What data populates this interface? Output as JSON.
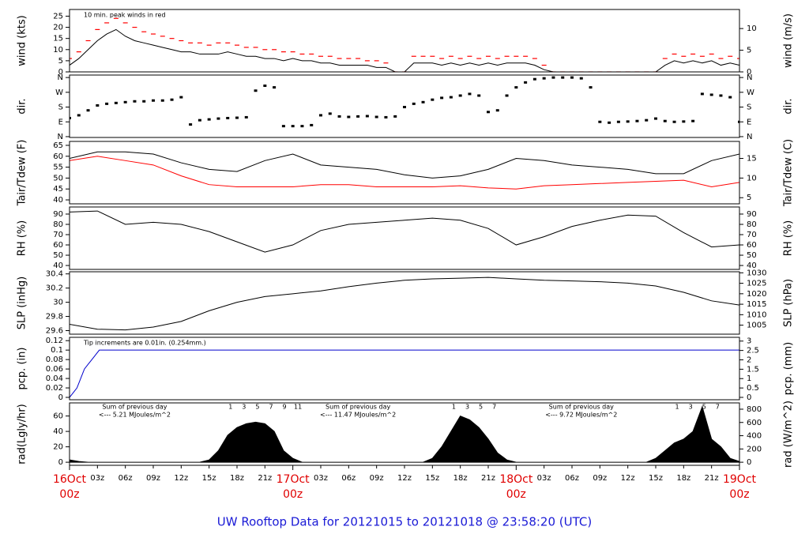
{
  "chart_data": [
    {
      "type": "line",
      "ylabel": "wind (kts)",
      "y2label": "wind (m/s)",
      "annotation": "10 min. peak winds in red",
      "ylim": [
        0,
        28
      ],
      "yticks": [
        0,
        5,
        10,
        15,
        20,
        25
      ],
      "y2lim": [
        0,
        14.4
      ],
      "y2ticks": [
        0,
        5,
        10
      ],
      "xlim": [
        0,
        72
      ],
      "x": [
        0,
        1,
        2,
        3,
        4,
        5,
        6,
        7,
        8,
        9,
        10,
        11,
        12,
        13,
        14,
        15,
        16,
        17,
        18,
        19,
        20,
        21,
        22,
        23,
        24,
        25,
        26,
        27,
        28,
        29,
        30,
        31,
        32,
        33,
        34,
        35,
        36,
        37,
        38,
        39,
        40,
        41,
        42,
        43,
        44,
        45,
        46,
        47,
        48,
        49,
        50,
        51,
        52,
        53,
        54,
        55,
        56,
        57,
        58,
        59,
        60,
        61,
        62,
        63,
        64,
        65,
        66,
        67,
        68,
        69,
        70,
        71,
        72
      ],
      "series": [
        {
          "color": "#000000",
          "style": "line",
          "values": [
            3,
            6,
            10,
            14,
            17,
            19,
            16,
            14,
            13,
            12,
            11,
            10,
            9,
            9,
            8,
            8,
            8,
            9,
            8,
            7,
            7,
            6,
            6,
            5,
            6,
            5,
            5,
            4,
            4,
            3,
            3,
            3,
            3,
            2,
            2,
            0,
            0,
            4,
            4,
            4,
            3,
            4,
            3,
            4,
            3,
            4,
            3,
            4,
            4,
            4,
            3,
            1,
            0,
            0,
            0,
            0,
            0,
            0,
            0,
            0,
            0,
            0,
            0,
            0,
            3,
            5,
            4,
            5,
            4,
            5,
            3,
            4,
            3
          ]
        },
        {
          "color": "#ff0000",
          "style": "ticks",
          "values": [
            6,
            9,
            14,
            19,
            22,
            24,
            22,
            20,
            18,
            17,
            16,
            15,
            14,
            13,
            13,
            12,
            13,
            13,
            12,
            11,
            11,
            10,
            10,
            9,
            9,
            8,
            8,
            7,
            7,
            6,
            6,
            6,
            5,
            5,
            4,
            0,
            0,
            7,
            7,
            7,
            6,
            7,
            6,
            7,
            6,
            7,
            6,
            7,
            7,
            7,
            6,
            3,
            0,
            0,
            0,
            0,
            0,
            0,
            0,
            0,
            0,
            0,
            0,
            0,
            6,
            8,
            7,
            8,
            7,
            8,
            6,
            7,
            6
          ]
        }
      ]
    },
    {
      "type": "line",
      "ylabel": "dir.",
      "y2label": "dir.",
      "ylim": [
        -5,
        375
      ],
      "yticks": [
        {
          "value": 0,
          "label": "N"
        },
        {
          "value": 90,
          "label": "E"
        },
        {
          "value": 180,
          "label": "S"
        },
        {
          "value": 270,
          "label": "W"
        },
        {
          "value": 360,
          "label": "N"
        }
      ],
      "y2lim": [
        -5,
        375
      ],
      "y2ticks": [
        {
          "value": 0,
          "label": "N"
        },
        {
          "value": 90,
          "label": "E"
        },
        {
          "value": 180,
          "label": "S"
        },
        {
          "value": 270,
          "label": "W"
        },
        {
          "value": 360,
          "label": "N"
        }
      ],
      "xlim": [
        0,
        72
      ],
      "x": [
        0,
        1,
        2,
        3,
        4,
        5,
        6,
        7,
        8,
        9,
        10,
        11,
        12,
        13,
        14,
        15,
        16,
        17,
        18,
        19,
        20,
        21,
        22,
        23,
        24,
        25,
        26,
        27,
        28,
        29,
        30,
        31,
        32,
        33,
        34,
        35,
        36,
        37,
        38,
        39,
        40,
        41,
        42,
        43,
        44,
        45,
        46,
        47,
        48,
        49,
        50,
        51,
        52,
        53,
        54,
        55,
        56,
        57,
        58,
        59,
        60,
        61,
        62,
        63,
        64,
        65,
        66,
        67,
        68,
        69,
        70,
        71,
        72
      ],
      "series": [
        {
          "color": "#000000",
          "style": "points",
          "values": [
            113,
            130,
            160,
            190,
            200,
            205,
            210,
            215,
            215,
            220,
            220,
            225,
            240,
            74,
            100,
            105,
            110,
            113,
            115,
            118,
            280,
            310,
            300,
            64,
            64,
            64,
            70,
            130,
            140,
            123,
            120,
            123,
            125,
            120,
            118,
            123,
            180,
            200,
            210,
            225,
            236,
            240,
            250,
            260,
            250,
            150,
            160,
            250,
            300,
            330,
            350,
            355,
            360,
            360,
            360,
            355,
            300,
            90,
            85,
            90,
            92,
            95,
            100,
            110,
            95,
            90,
            92,
            95,
            260,
            255,
            250,
            240,
            90
          ]
        }
      ]
    },
    {
      "type": "line",
      "ylabel": "Tair/Tdew (F)",
      "y2label": "Tair/Tdew (C)",
      "ylim": [
        38.2,
        66.8
      ],
      "yticks": [
        40,
        45,
        50,
        55,
        60,
        65
      ],
      "y2lim": [
        3.44,
        19.33
      ],
      "y2ticks": [
        5,
        10,
        15
      ],
      "xlim": [
        0,
        72
      ],
      "x": [
        0,
        3,
        6,
        9,
        12,
        15,
        18,
        21,
        24,
        27,
        30,
        33,
        36,
        39,
        42,
        45,
        48,
        51,
        54,
        57,
        60,
        63,
        66,
        69,
        72
      ],
      "series": [
        {
          "color": "#000000",
          "style": "line",
          "values": [
            59,
            62,
            62,
            61,
            57,
            54,
            53,
            58,
            61,
            56,
            55,
            54,
            51.5,
            50,
            51,
            54,
            59,
            58,
            56,
            55,
            54,
            52,
            52,
            58,
            61
          ]
        },
        {
          "color": "#ff0000",
          "style": "line",
          "values": [
            58,
            60,
            58,
            56,
            51,
            47,
            46,
            46,
            46,
            47,
            47,
            46,
            46,
            46,
            46.5,
            45.5,
            45,
            46.5,
            47,
            47.5,
            48,
            48.5,
            49,
            46,
            48
          ]
        }
      ]
    },
    {
      "type": "line",
      "ylabel": "RH (%)",
      "y2label": "RH (%)",
      "ylim": [
        36.2,
        96.9
      ],
      "yticks": [
        40,
        50,
        60,
        70,
        80,
        90
      ],
      "y2lim": [
        36.2,
        96.9
      ],
      "y2ticks": [
        40,
        50,
        60,
        70,
        80,
        90
      ],
      "xlim": [
        0,
        72
      ],
      "x": [
        0,
        3,
        6,
        9,
        12,
        15,
        18,
        21,
        24,
        27,
        30,
        33,
        36,
        39,
        42,
        45,
        48,
        51,
        54,
        57,
        60,
        63,
        66,
        69,
        72
      ],
      "series": [
        {
          "color": "#000000",
          "style": "line",
          "values": [
            92,
            93,
            80,
            82,
            80,
            73,
            63,
            53,
            60,
            74,
            80,
            82,
            84,
            86,
            84,
            76,
            60,
            68,
            78,
            84,
            89,
            88,
            72,
            58,
            60
          ]
        }
      ]
    },
    {
      "type": "line",
      "ylabel": "SLP (inHg)",
      "y2label": "SLP (hPa)",
      "ylim": [
        29.55,
        30.43
      ],
      "yticks": [
        29.6,
        29.8,
        30.0,
        30.2,
        30.4
      ],
      "y2lim": [
        1000.7,
        1030.5
      ],
      "y2ticks": [
        1005,
        1010,
        1015,
        1020,
        1025,
        1030
      ],
      "xlim": [
        0,
        72
      ],
      "x": [
        0,
        3,
        6,
        9,
        12,
        15,
        18,
        21,
        24,
        27,
        30,
        33,
        36,
        39,
        42,
        45,
        48,
        51,
        54,
        57,
        60,
        63,
        66,
        69,
        72
      ],
      "series": [
        {
          "color": "#000000",
          "style": "line",
          "values": [
            29.69,
            29.62,
            29.61,
            29.65,
            29.73,
            29.88,
            30.0,
            30.08,
            30.12,
            30.16,
            30.22,
            30.27,
            30.31,
            30.33,
            30.34,
            30.35,
            30.33,
            30.31,
            30.3,
            30.29,
            30.27,
            30.23,
            30.14,
            30.02,
            29.96
          ]
        }
      ]
    },
    {
      "type": "line",
      "ylabel": "pcp. (in)",
      "y2label": "pcp. (mm)",
      "annotation": "Tip increments are 0.01in. (0.254mm.)",
      "ylim": [
        -0.005,
        0.127
      ],
      "yticks": [
        0,
        0.02,
        0.04,
        0.06,
        0.08,
        0.1,
        0.12
      ],
      "y2lim": [
        -0.127,
        3.2
      ],
      "y2ticks": [
        0,
        0.5,
        1,
        1.5,
        2,
        2.5,
        3
      ],
      "xlim": [
        0,
        72
      ],
      "x": [
        0,
        0.4,
        0.8,
        1.2,
        1.6,
        2.0,
        2.4,
        2.8,
        3.2,
        72
      ],
      "series": [
        {
          "color": "#0000cc",
          "style": "line",
          "values": [
            0,
            0.01,
            0.02,
            0.04,
            0.06,
            0.07,
            0.08,
            0.09,
            0.1,
            0.1
          ]
        }
      ]
    },
    {
      "type": "line",
      "ylabel": "rad(Lgly/hr)",
      "y2label": "rad (W/m^2)",
      "ylim": [
        -4,
        77
      ],
      "yticks": [
        0,
        20,
        40,
        60
      ],
      "y2lim": [
        -46.5,
        895
      ],
      "y2ticks": [
        0,
        200,
        400,
        600,
        800
      ],
      "xlim": [
        0,
        72
      ],
      "x": [
        0,
        1,
        2,
        3,
        4,
        5,
        6,
        7,
        8,
        9,
        10,
        11,
        12,
        13,
        14,
        15,
        16,
        17,
        18,
        19,
        20,
        21,
        22,
        23,
        24,
        25,
        26,
        27,
        28,
        29,
        30,
        31,
        32,
        33,
        34,
        35,
        36,
        37,
        38,
        39,
        40,
        41,
        42,
        43,
        44,
        45,
        46,
        47,
        48,
        49,
        50,
        51,
        52,
        53,
        54,
        55,
        56,
        57,
        58,
        59,
        60,
        61,
        62,
        63,
        64,
        65,
        66,
        67,
        68,
        69,
        70,
        71,
        72
      ],
      "series": [
        {
          "color": "#000000",
          "style": "area",
          "values": [
            3,
            1,
            0,
            0,
            0,
            0,
            0,
            0,
            0,
            0,
            0,
            0,
            0,
            0,
            0,
            3,
            15,
            35,
            45,
            50,
            52,
            50,
            40,
            15,
            5,
            0,
            0,
            0,
            0,
            0,
            0,
            0,
            0,
            0,
            0,
            0,
            0,
            0,
            0,
            5,
            20,
            40,
            60,
            55,
            45,
            30,
            12,
            3,
            0,
            0,
            0,
            0,
            0,
            0,
            0,
            0,
            0,
            0,
            0,
            0,
            0,
            0,
            0,
            5,
            15,
            25,
            30,
            40,
            72,
            30,
            20,
            5,
            1
          ]
        }
      ],
      "daily_sums": [
        {
          "title": "Sum of previous day",
          "text": "<--- 5.21 MJoules/m^2"
        },
        {
          "title": "Sum of previous day",
          "text": "<--- 11.47 MJoules/m^2"
        },
        {
          "title": "Sum of previous day",
          "text": "<--- 9.72 MJoules/m^2"
        }
      ],
      "hour_marks": [
        [
          "1",
          "3",
          "5",
          "7",
          "9",
          "11"
        ],
        [
          "1",
          "3",
          "5",
          "7"
        ],
        [
          "1",
          "3",
          "5",
          "7"
        ]
      ]
    }
  ],
  "x_axis": {
    "xlim": [
      0,
      72
    ],
    "xticks": [
      {
        "value": 3,
        "label": "03z"
      },
      {
        "value": 6,
        "label": "06z"
      },
      {
        "value": 9,
        "label": "09z"
      },
      {
        "value": 12,
        "label": "12z"
      },
      {
        "value": 15,
        "label": "15z"
      },
      {
        "value": 18,
        "label": "18z"
      },
      {
        "value": 21,
        "label": "21z"
      },
      {
        "value": 27,
        "label": "03z"
      },
      {
        "value": 30,
        "label": "06z"
      },
      {
        "value": 33,
        "label": "09z"
      },
      {
        "value": 36,
        "label": "12z"
      },
      {
        "value": 39,
        "label": "15z"
      },
      {
        "value": 42,
        "label": "18z"
      },
      {
        "value": 45,
        "label": "21z"
      },
      {
        "value": 51,
        "label": "03z"
      },
      {
        "value": 54,
        "label": "06z"
      },
      {
        "value": 57,
        "label": "09z"
      },
      {
        "value": 60,
        "label": "12z"
      },
      {
        "value": 63,
        "label": "15z"
      },
      {
        "value": 66,
        "label": "18z"
      },
      {
        "value": 69,
        "label": "21z"
      }
    ],
    "day_labels": [
      {
        "value": 0,
        "date": "16Oct",
        "time": "00z"
      },
      {
        "value": 24,
        "date": "17Oct",
        "time": "00z"
      },
      {
        "value": 48,
        "date": "18Oct",
        "time": "00z"
      },
      {
        "value": 72,
        "date": "19Oct",
        "time": "00z"
      }
    ]
  },
  "footer": "UW Rooftop Data for 20121015  to  20121018 @ 23:58:20  (UTC)"
}
